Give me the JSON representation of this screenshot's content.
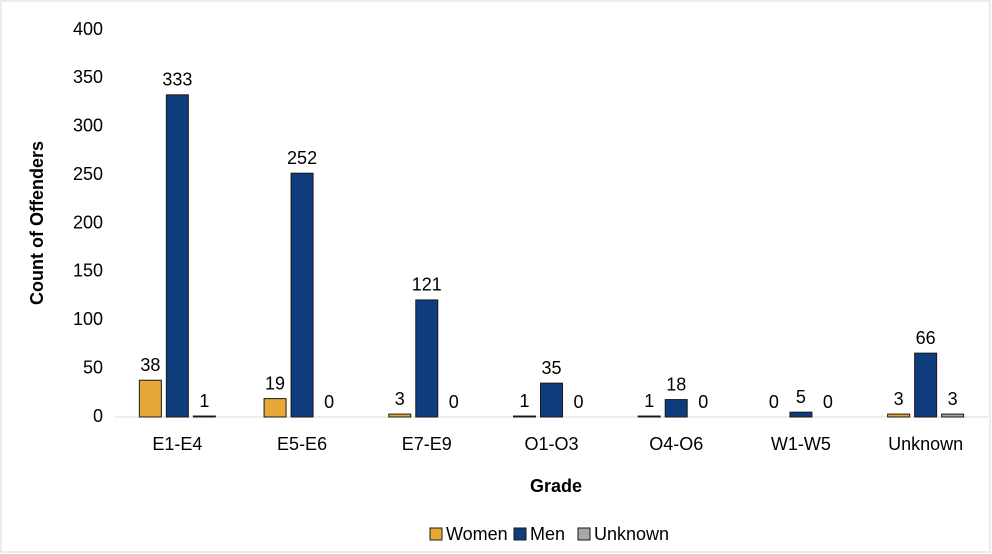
{
  "chart_data": {
    "type": "bar",
    "x_label": "Grade",
    "y_label": "Count of Offenders",
    "categories": [
      "E1-E4",
      "E5-E6",
      "E7-E9",
      "O1-O3",
      "O4-O6",
      "W1-W5",
      "Unknown"
    ],
    "series": [
      {
        "name": "Women",
        "color": "#e8a838",
        "values": [
          38,
          19,
          3,
          1,
          1,
          0,
          3
        ]
      },
      {
        "name": "Men",
        "color": "#0e3c7c",
        "values": [
          333,
          252,
          121,
          35,
          18,
          5,
          66
        ]
      },
      {
        "name": "Unknown",
        "color": "#a6a6a6",
        "values": [
          1,
          0,
          0,
          0,
          0,
          0,
          3
        ]
      }
    ],
    "ylim": [
      0,
      400
    ],
    "yticks": [
      0,
      50,
      100,
      150,
      200,
      250,
      300,
      350,
      400
    ],
    "grid": false,
    "legend": "bottom"
  }
}
